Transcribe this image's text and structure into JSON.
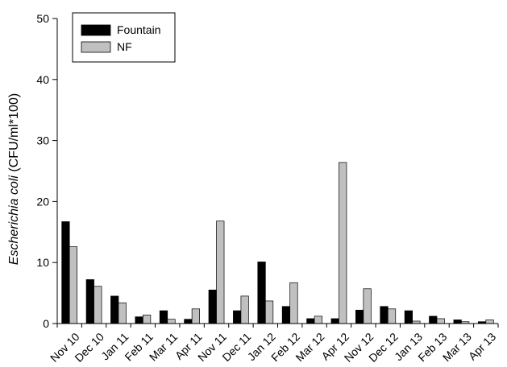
{
  "chart_data": {
    "type": "bar",
    "categories": [
      "Nov 10",
      "Dec 10",
      "Jan 11",
      "Feb 11",
      "Mar 11",
      "Apr 11",
      "Nov 11",
      "Dec 11",
      "Jan 12",
      "Feb 12",
      "Mar 12",
      "Apr 12",
      "Nov 12",
      "Dec 12",
      "Jan 13",
      "Feb 13",
      "Mar 13",
      "Apr 13"
    ],
    "series": [
      {
        "name": "Fountain",
        "color": "#000000",
        "values": [
          16.7,
          7.2,
          4.5,
          1.1,
          2.1,
          0.7,
          5.5,
          2.1,
          10.1,
          2.8,
          0.8,
          0.8,
          2.2,
          2.8,
          2.1,
          1.2,
          0.6,
          0.3
        ]
      },
      {
        "name": "NF",
        "color": "#c0c0c0",
        "values": [
          12.6,
          6.1,
          3.4,
          1.4,
          0.7,
          2.4,
          16.8,
          4.5,
          3.7,
          6.7,
          1.2,
          26.4,
          5.7,
          2.4,
          0.4,
          0.8,
          0.3,
          0.6
        ]
      }
    ],
    "ylabel_italic": "Escherichia coli",
    "ylabel_rest": " (CFU/ml*100)",
    "ylim": [
      0,
      50
    ],
    "yticks": [
      "0",
      "10",
      "20",
      "30",
      "40",
      "50"
    ],
    "legend_position": "top-left",
    "grid": false
  }
}
